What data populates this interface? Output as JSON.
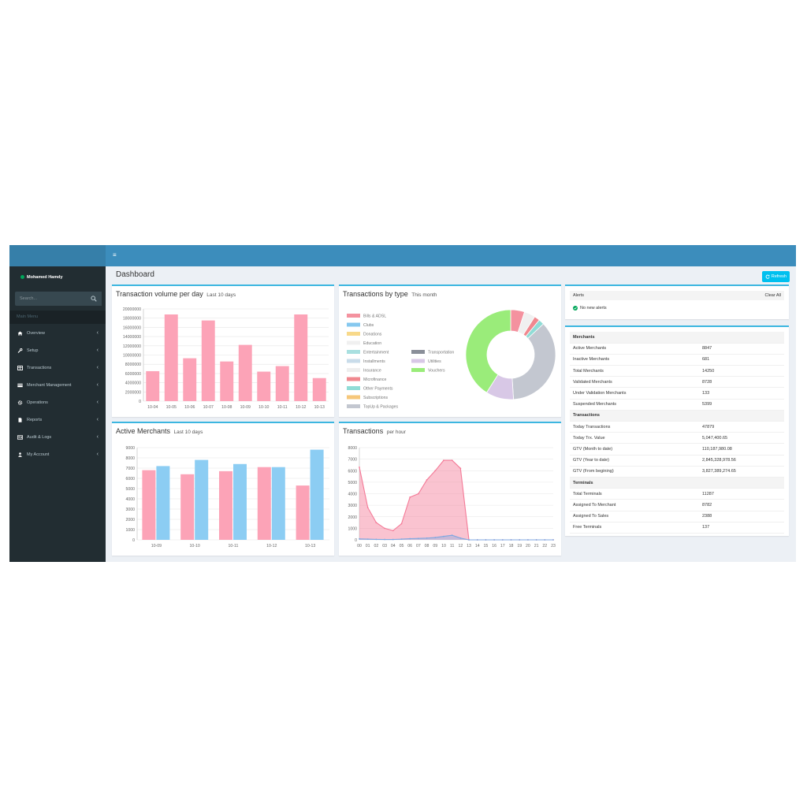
{
  "colors": {
    "header": "#3c8dbc",
    "logo": "#367fa9",
    "sidebar": "#222d32",
    "accent": "#00c0ef",
    "pink": "#fca3b7",
    "blue": "#8ccdf3"
  },
  "user": {
    "name": "Mohamed Hamdy",
    "status_color": "#00a65a"
  },
  "search": {
    "placeholder": "Search...",
    "icon": "search-icon"
  },
  "sidebar": {
    "header": "Main Menu",
    "items": [
      {
        "label": "Overview",
        "icon": "home-icon"
      },
      {
        "label": "Setup",
        "icon": "wrench-icon"
      },
      {
        "label": "Transactions",
        "icon": "table-icon"
      },
      {
        "label": "Merchant Management",
        "icon": "card-icon"
      },
      {
        "label": "Operations",
        "icon": "gear-icon"
      },
      {
        "label": "Reports",
        "icon": "file-icon"
      },
      {
        "label": "Audit & Logs",
        "icon": "id-card-icon"
      },
      {
        "label": "My Account",
        "icon": "user-icon"
      }
    ]
  },
  "page": {
    "title": "Dashboard",
    "refresh_label": "Refresh"
  },
  "panels": {
    "volume": {
      "title": "Transaction volume per day",
      "subtitle": "Last 10 days"
    },
    "types": {
      "title": "Transactions by type",
      "subtitle": "This month"
    },
    "active": {
      "title": "Active Merchants",
      "subtitle": "Last 10 days"
    },
    "hour": {
      "title": "Transactions",
      "subtitle": "per hour"
    }
  },
  "alerts": {
    "title": "Alerts",
    "clear_label": "Clear All",
    "empty_text": "No new alerts"
  },
  "stats": [
    {
      "section": "Merchants",
      "rows": [
        {
          "label": "Active Merchants",
          "value": "8847"
        },
        {
          "label": "Inactive Merchants",
          "value": "681"
        },
        {
          "label": "Total Merchants",
          "value": "14250"
        },
        {
          "label": "Validated Merchants",
          "value": "8728"
        },
        {
          "label": "Under Validation Merchants",
          "value": "133"
        },
        {
          "label": "Suspended Merchants",
          "value": "5399"
        }
      ]
    },
    {
      "section": "Transactions",
      "rows": [
        {
          "label": "Today Transactions",
          "value": "47879"
        },
        {
          "label": "Today Trx. Value",
          "value": "5,047,400.65"
        },
        {
          "label": "GTV (Month to date)",
          "value": "110,187,980.08"
        },
        {
          "label": "GTV (Year to date)",
          "value": "2,845,328,978.56"
        },
        {
          "label": "GTV (From begining)",
          "value": "3,827,389,274.65"
        }
      ]
    },
    {
      "section": "Terminals",
      "rows": [
        {
          "label": "Total Terminals",
          "value": "11287"
        },
        {
          "label": "Assigned To Merchant",
          "value": "8782"
        },
        {
          "label": "Assigned To Sales",
          "value": "2388"
        },
        {
          "label": "Free Terminals",
          "value": "137"
        }
      ]
    }
  ],
  "chart_data": [
    {
      "type": "bar",
      "categories": [
        "10-04",
        "10-05",
        "10-06",
        "10-07",
        "10-08",
        "10-09",
        "10-10",
        "10-11",
        "10-12",
        "10-13"
      ],
      "values": [
        6500000,
        18800000,
        9300000,
        17500000,
        8600000,
        12200000,
        6400000,
        7600000,
        18800000,
        5000000
      ],
      "yticks": [
        "20000000",
        "18000000",
        "16000000",
        "14000000",
        "12000000",
        "10000000",
        "8000000",
        "6000000",
        "4000000",
        "2000000",
        "0"
      ],
      "ylim": [
        0,
        20000000
      ],
      "grid": true,
      "color": "#fca3b7"
    },
    {
      "type": "pie",
      "donut": true,
      "legend": [
        {
          "label": "Bills & ADSL",
          "color": "#f4929f"
        },
        {
          "label": "Clubs",
          "color": "#86c8ef"
        },
        {
          "label": "Donations",
          "color": "#f8d98a"
        },
        {
          "label": "Education",
          "color": "#f0f0f0"
        },
        {
          "label": "Entertainment",
          "color": "#a9e0e0"
        },
        {
          "label": "Installments",
          "color": "#c9dcea"
        },
        {
          "label": "Insurance",
          "color": "#eeeeee"
        },
        {
          "label": "Microfinance",
          "color": "#f0888f"
        },
        {
          "label": "Other Payments",
          "color": "#90dcd6"
        },
        {
          "label": "Subscriptions",
          "color": "#f6c77a"
        },
        {
          "label": "TopUp & Packages",
          "color": "#c3c7d0"
        },
        {
          "label": "Transportation",
          "color": "#8a8f99"
        },
        {
          "label": "Utilities",
          "color": "#d8c8e6"
        },
        {
          "label": "Vouchers",
          "color": "#9aec7a"
        }
      ],
      "slices": [
        {
          "label": "Bills & ADSL",
          "value": 5,
          "color": "#f4929f"
        },
        {
          "label": "Education",
          "value": 4,
          "color": "#f0f0f0"
        },
        {
          "label": "Microfinance",
          "value": 2,
          "color": "#f0888f"
        },
        {
          "label": "Other Payments",
          "value": 2,
          "color": "#90dcd6"
        },
        {
          "label": "TopUp & Packages",
          "value": 36,
          "color": "#c3c7d0"
        },
        {
          "label": "Utilities",
          "value": 10,
          "color": "#d8c8e6"
        },
        {
          "label": "Vouchers",
          "value": 41,
          "color": "#9aec7a"
        }
      ]
    },
    {
      "type": "bar",
      "categories": [
        "10-09",
        "10-10",
        "10-11",
        "10-12",
        "10-13"
      ],
      "series": [
        {
          "values": [
            6800,
            6400,
            6700,
            7100,
            5300
          ],
          "color": "#fca3b7"
        },
        {
          "values": [
            7200,
            7800,
            7400,
            7100,
            8800
          ],
          "color": "#8ccdf3"
        }
      ],
      "yticks": [
        "9000",
        "8000",
        "7000",
        "6000",
        "5000",
        "4000",
        "3000",
        "2000",
        "1000",
        "0"
      ],
      "ylim": [
        0,
        9000
      ],
      "grid": true
    },
    {
      "type": "area",
      "categories": [
        "00",
        "01",
        "02",
        "03",
        "04",
        "05",
        "06",
        "07",
        "08",
        "09",
        "10",
        "11",
        "12",
        "13",
        "14",
        "15",
        "16",
        "17",
        "18",
        "19",
        "20",
        "21",
        "22",
        "23"
      ],
      "series": [
        {
          "values": [
            6300,
            2800,
            1500,
            1000,
            800,
            1400,
            3700,
            4000,
            5200,
            6000,
            6900,
            6900,
            6200,
            0,
            0,
            0,
            0,
            0,
            0,
            0,
            0,
            0,
            0,
            0
          ],
          "color": "#f47a97"
        },
        {
          "values": [
            80,
            60,
            40,
            30,
            30,
            60,
            100,
            120,
            150,
            200,
            300,
            400,
            150,
            0,
            0,
            0,
            0,
            0,
            0,
            0,
            0,
            0,
            0,
            0
          ],
          "color": "#7fa7e0"
        }
      ],
      "yticks": [
        "8000",
        "7000",
        "6000",
        "5000",
        "4000",
        "3000",
        "2000",
        "1000",
        "0"
      ],
      "ylim": [
        0,
        8000
      ],
      "grid": true
    }
  ]
}
